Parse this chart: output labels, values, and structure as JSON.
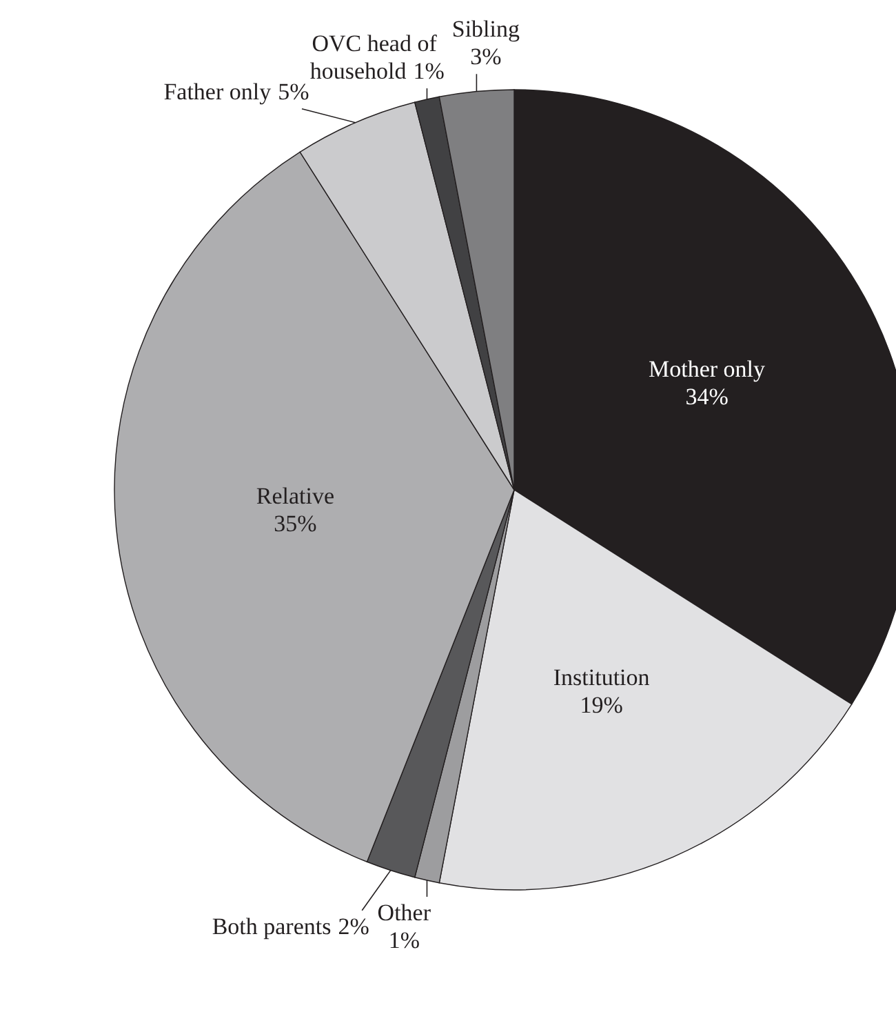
{
  "chart_data": {
    "type": "pie",
    "categories": [
      "Mother only",
      "Institution",
      "Other",
      "Both parents",
      "Relative",
      "Father only",
      "OVC head of household",
      "Sibling"
    ],
    "values": [
      34,
      19,
      1,
      2,
      35,
      5,
      1,
      3
    ],
    "colors": [
      "#231f20",
      "#e1e1e3",
      "#9d9d9f",
      "#58585a",
      "#aeaeb0",
      "#cbcbcd",
      "#414143",
      "#7f7f81"
    ],
    "value_labels": [
      "34%",
      "19%",
      "1%",
      "2%",
      "35%",
      "5%",
      "1%",
      "3%"
    ]
  }
}
